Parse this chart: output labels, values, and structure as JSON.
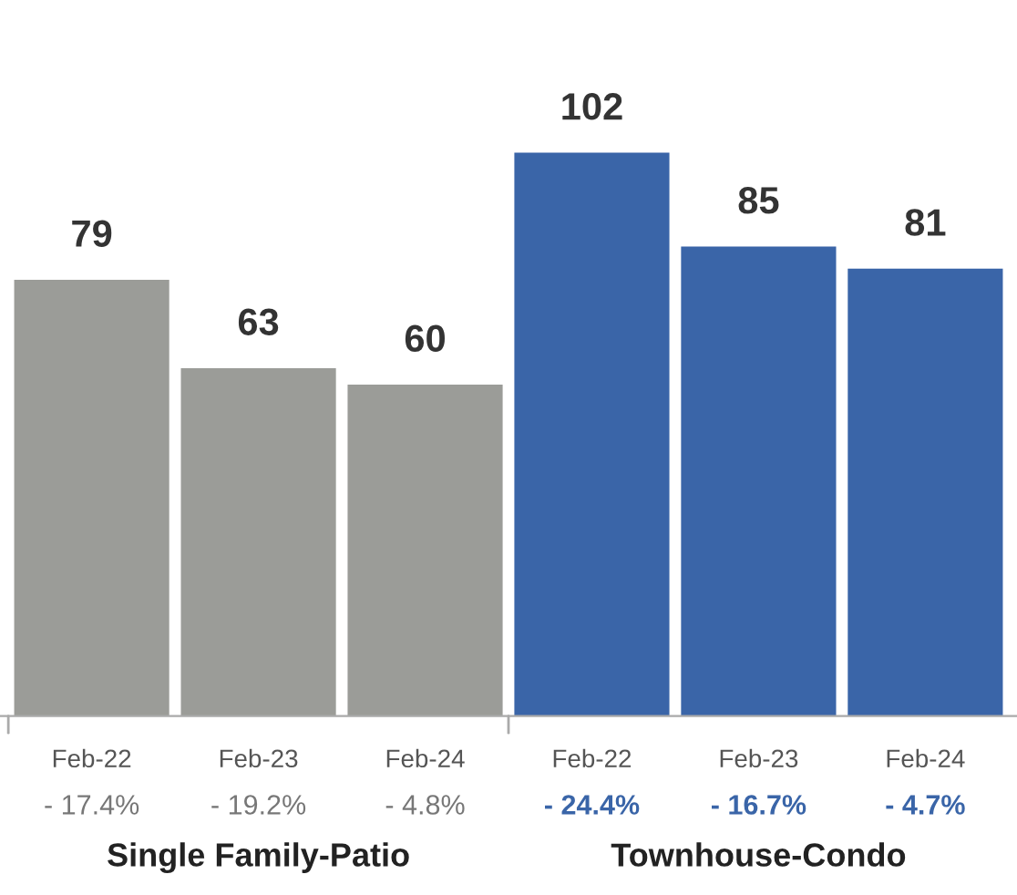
{
  "chart_data": {
    "type": "bar",
    "categories": [
      "Feb-22",
      "Feb-23",
      "Feb-24",
      "Feb-22",
      "Feb-23",
      "Feb-24"
    ],
    "values": [
      79,
      63,
      60,
      102,
      85,
      81
    ],
    "colors": [
      "#9b9c98",
      "#9b9c98",
      "#9b9c98",
      "#3a65a8",
      "#3a65a8",
      "#3a65a8"
    ],
    "data_labels": true,
    "grid": false,
    "legend": false,
    "annotations": [
      "- 17.4%",
      "- 19.2%",
      "- 4.8%",
      "- 24.4%",
      "- 16.7%",
      "- 4.7%",
      "Single Family-Patio",
      "Townhouse-Condo"
    ]
  }
}
